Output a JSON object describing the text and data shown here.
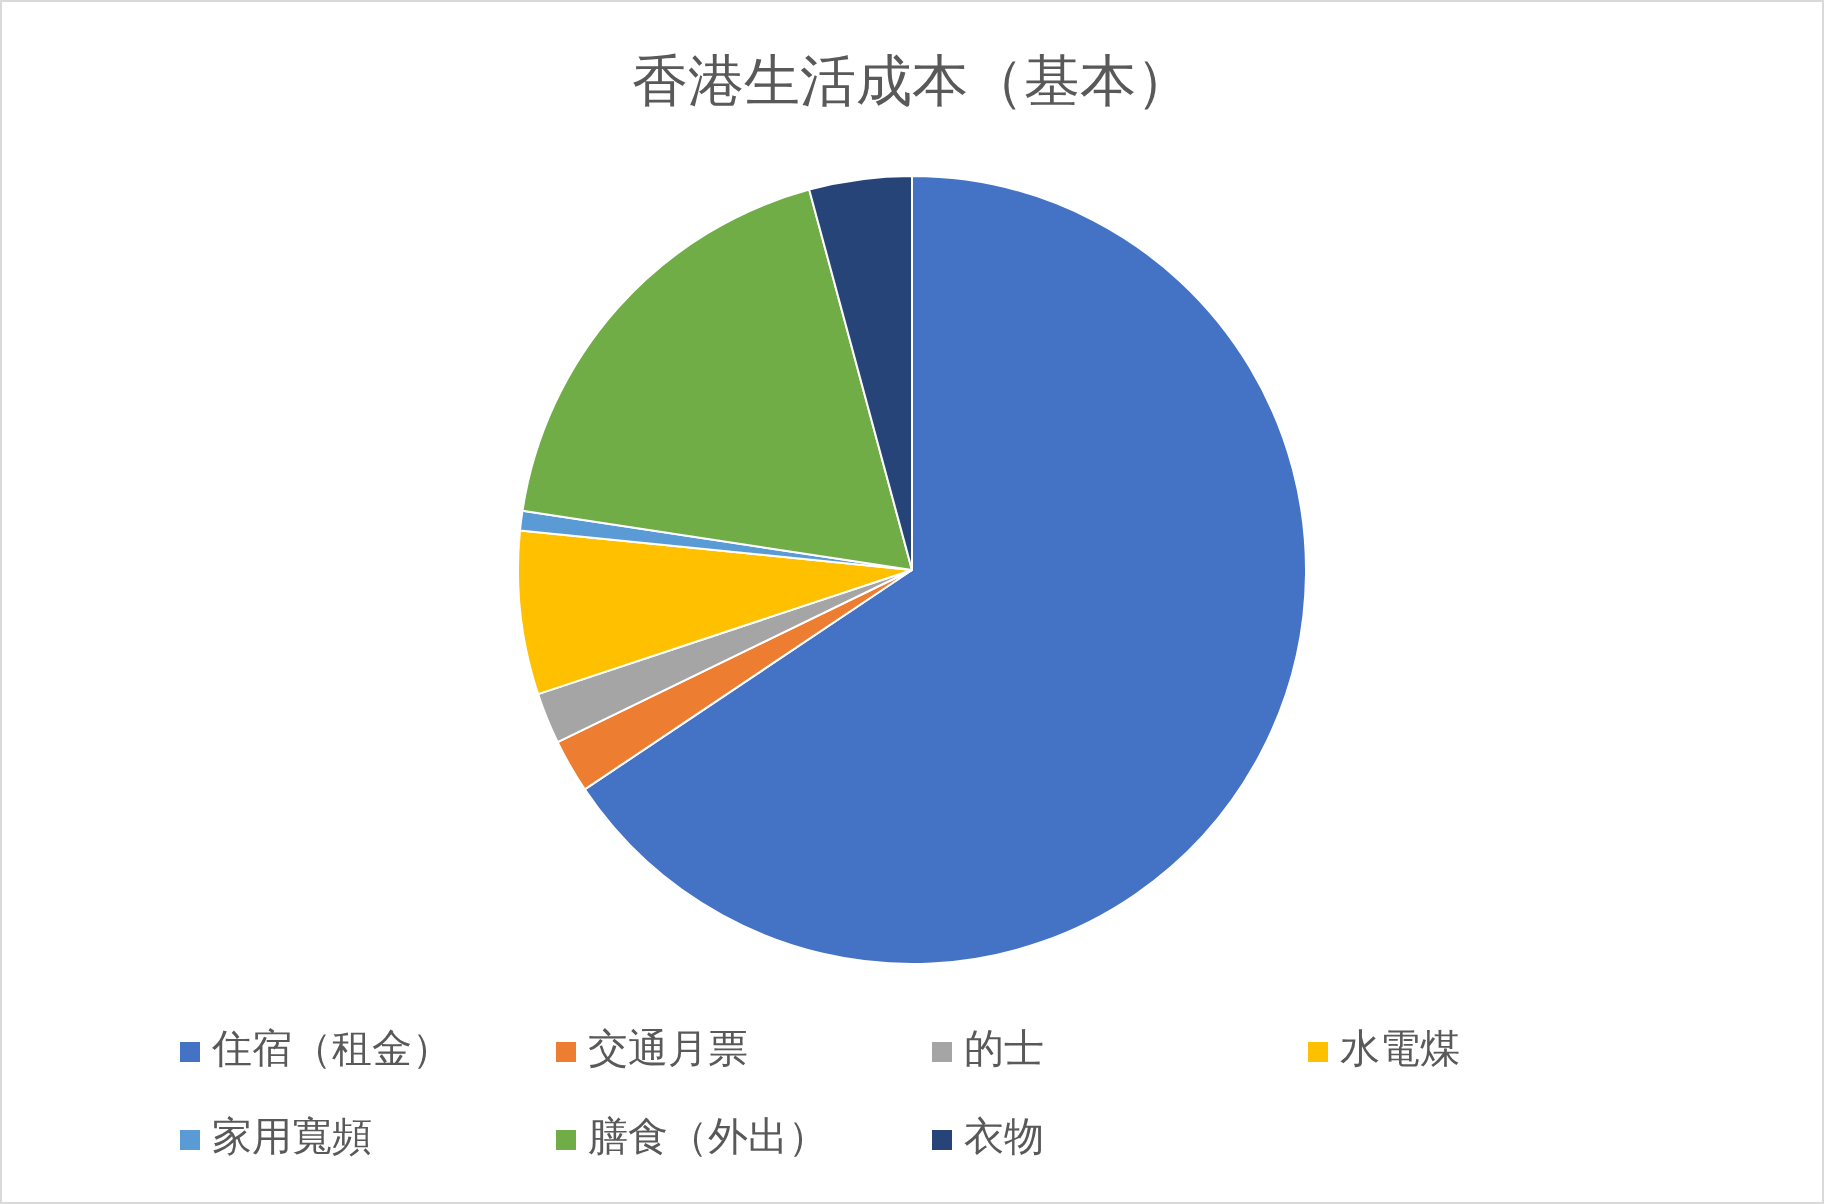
{
  "chart_data": {
    "type": "pie",
    "title": "香港生活成本（基本）",
    "categories": [
      "住宿（租金）",
      "交通月票",
      "的士",
      "水電煤",
      "家用寬頻",
      "膳食（外出）",
      "衣物"
    ],
    "values": [
      65.6,
      2.2,
      2.1,
      6.7,
      0.8,
      18.4,
      4.2
    ],
    "colors": [
      "#4472c4",
      "#ed7d31",
      "#a5a5a5",
      "#ffc000",
      "#5b9bd5",
      "#70ad47",
      "#264478"
    ],
    "legend": "bottom"
  }
}
